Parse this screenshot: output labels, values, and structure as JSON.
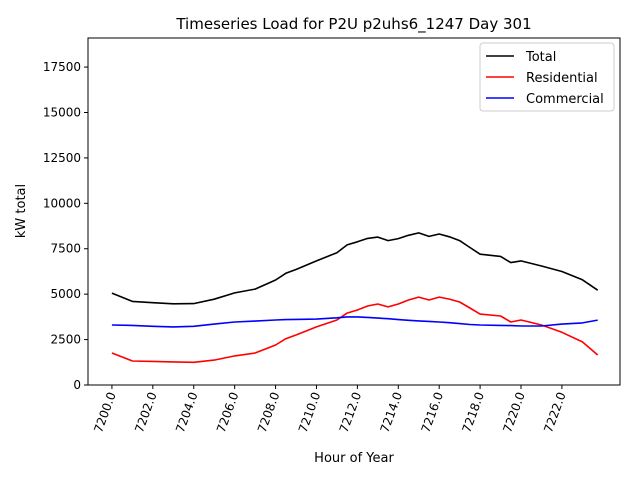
{
  "chart_data": {
    "type": "line",
    "title": "Timeseries Load for P2U p2uhs6_1247  Day 301",
    "xlabel": "Hour of Year",
    "ylabel": "kW total",
    "xlim": [
      7198.83,
      7224.84
    ],
    "ylim": [
      0,
      19100
    ],
    "xticks": [
      7200,
      7202,
      7204,
      7206,
      7208,
      7210,
      7212,
      7214,
      7216,
      7218,
      7220,
      7222
    ],
    "xtick_labels": [
      "7200.0",
      "7202.0",
      "7204.0",
      "7206.0",
      "7208.0",
      "7210.0",
      "7212.0",
      "7214.0",
      "7216.0",
      "7218.0",
      "7220.0",
      "7222.0"
    ],
    "yticks": [
      0,
      2500,
      5000,
      7500,
      10000,
      12500,
      15000,
      17500
    ],
    "ytick_labels": [
      "0",
      "2500",
      "5000",
      "7500",
      "10000",
      "12500",
      "15000",
      "17500"
    ],
    "grid": false,
    "legend_position": "top-right",
    "x": [
      7200,
      7201,
      7202,
      7203,
      7204,
      7205,
      7206,
      7207,
      7208,
      7208.5,
      7209,
      7210,
      7211,
      7211.5,
      7212,
      7212.5,
      7213,
      7213.5,
      7214,
      7214.5,
      7215,
      7215.5,
      7216,
      7216.5,
      7217,
      7217.5,
      7218,
      7219,
      7219.5,
      7220,
      7221,
      7222,
      7223,
      7223.75
    ],
    "series": [
      {
        "name": "Total",
        "color": "#000000",
        "values": [
          5060,
          4600,
          4530,
          4470,
          4480,
          4720,
          5070,
          5280,
          5780,
          6150,
          6360,
          6830,
          7280,
          7710,
          7880,
          8070,
          8140,
          7950,
          8060,
          8240,
          8370,
          8180,
          8310,
          8160,
          7950,
          7570,
          7200,
          7080,
          6740,
          6830,
          6550,
          6250,
          5790,
          5220
        ]
      },
      {
        "name": "Residential",
        "color": "#ff0000",
        "values": [
          1760,
          1320,
          1300,
          1270,
          1250,
          1370,
          1600,
          1760,
          2200,
          2550,
          2750,
          3200,
          3580,
          3960,
          4130,
          4350,
          4460,
          4300,
          4460,
          4680,
          4840,
          4680,
          4840,
          4730,
          4570,
          4240,
          3900,
          3800,
          3470,
          3580,
          3300,
          2900,
          2370,
          1650
        ]
      },
      {
        "name": "Commercial",
        "color": "#0000ff",
        "values": [
          3300,
          3280,
          3230,
          3200,
          3230,
          3350,
          3470,
          3520,
          3580,
          3600,
          3610,
          3630,
          3700,
          3750,
          3750,
          3720,
          3680,
          3650,
          3600,
          3560,
          3530,
          3500,
          3470,
          3430,
          3380,
          3330,
          3300,
          3280,
          3270,
          3250,
          3250,
          3350,
          3420,
          3570
        ]
      }
    ]
  }
}
